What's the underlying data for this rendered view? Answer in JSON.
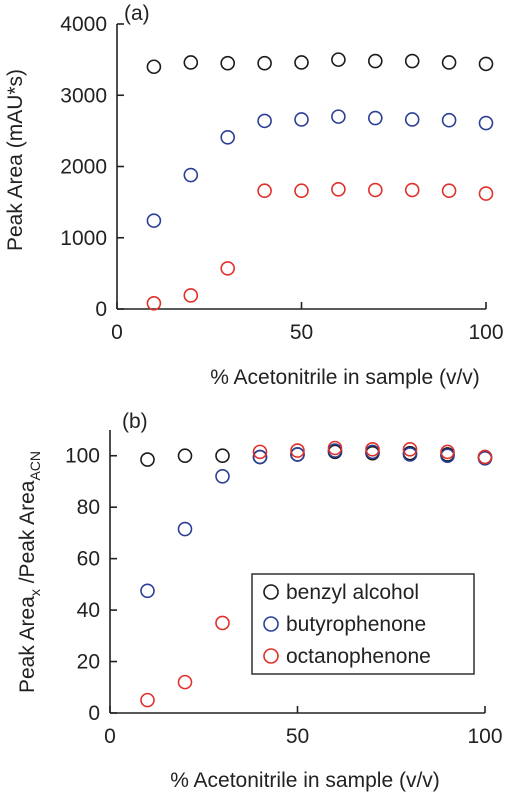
{
  "colors": {
    "benzyl_alcohol": "#1a1a1a",
    "butyrophenone": "#2b3f96",
    "octanophenone": "#e0302a",
    "axis": "#222222"
  },
  "chart_data": [
    {
      "type": "scatter",
      "panel_label": "(a)",
      "xlabel": "% Acetonitrile in sample (v/v)",
      "ylabel": "Peak Area (mAU*s)",
      "xlim": [
        0,
        100
      ],
      "ylim": [
        0,
        4000
      ],
      "xticks": [
        0,
        50,
        100
      ],
      "yticks": [
        0,
        1000,
        2000,
        3000,
        4000
      ],
      "grid": false,
      "legend": null,
      "series": [
        {
          "name": "benzyl alcohol",
          "color_key": "benzyl_alcohol",
          "x": [
            10,
            20,
            30,
            40,
            50,
            60,
            70,
            80,
            90,
            100
          ],
          "y": [
            3400,
            3460,
            3450,
            3450,
            3460,
            3500,
            3480,
            3480,
            3460,
            3440
          ]
        },
        {
          "name": "butyrophenone",
          "color_key": "butyrophenone",
          "x": [
            10,
            20,
            30,
            40,
            50,
            60,
            70,
            80,
            90,
            100
          ],
          "y": [
            1240,
            1880,
            2410,
            2640,
            2660,
            2700,
            2680,
            2660,
            2650,
            2610
          ]
        },
        {
          "name": "octanophenone",
          "color_key": "octanophenone",
          "x": [
            10,
            20,
            30,
            40,
            50,
            60,
            70,
            80,
            90,
            100
          ],
          "y": [
            80,
            190,
            570,
            1660,
            1660,
            1680,
            1670,
            1670,
            1660,
            1620
          ]
        }
      ]
    },
    {
      "type": "scatter",
      "panel_label": "(b)",
      "xlabel": "% Acetonitrile in sample (v/v)",
      "ylabel_main": "Peak Area",
      "ylabel_sub": "x",
      "ylabel_mid": " /Peak Area",
      "ylabel_sub2": "ACN",
      "xlim": [
        0,
        100
      ],
      "ylim": [
        0,
        110
      ],
      "xticks": [
        0,
        50,
        100
      ],
      "yticks": [
        0,
        20,
        40,
        60,
        80,
        100
      ],
      "grid": false,
      "legend": "bottom-right",
      "series": [
        {
          "name": "benzyl alcohol",
          "color_key": "benzyl_alcohol",
          "x": [
            10,
            20,
            30,
            40,
            50,
            60,
            70,
            80,
            90,
            100
          ],
          "y": [
            98.5,
            100,
            100,
            99.5,
            100.5,
            101.5,
            101,
            101,
            100.5,
            99.5
          ]
        },
        {
          "name": "butyrophenone",
          "color_key": "butyrophenone",
          "x": [
            10,
            20,
            30,
            40,
            50,
            60,
            70,
            80,
            90,
            100
          ],
          "y": [
            47.5,
            71.5,
            92,
            99.5,
            100.5,
            102,
            101.5,
            100.5,
            100,
            99
          ]
        },
        {
          "name": "octanophenone",
          "color_key": "octanophenone",
          "x": [
            10,
            20,
            30,
            40,
            50,
            60,
            70,
            80,
            90,
            100
          ],
          "y": [
            5,
            12,
            35,
            101.5,
            102,
            103,
            102.5,
            102.5,
            101.5,
            99.5
          ]
        }
      ]
    }
  ]
}
